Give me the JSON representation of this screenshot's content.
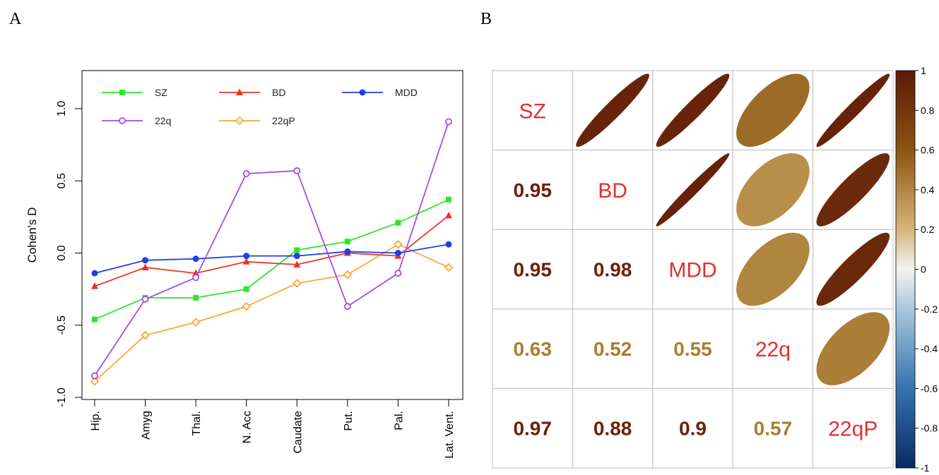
{
  "panels": {
    "a": "A",
    "b": "B"
  },
  "chart_data": [
    {
      "type": "line",
      "ylabel": "Cohen's D",
      "xlabel": "",
      "categories": [
        "Hip.",
        "Amyg",
        "Thal.",
        "N. Acc",
        "Caudate",
        "Put.",
        "Pal.",
        "Lat. Vent."
      ],
      "ylim": [
        -1.0,
        1.25
      ],
      "yticks": [
        -1.0,
        -0.5,
        0.0,
        0.5,
        1.0
      ],
      "ytick_labels": [
        "-1.0",
        "-0.5",
        "0.0",
        "0.5",
        "1.0"
      ],
      "grid": false,
      "legend_position": "top",
      "series": [
        {
          "name": "SZ",
          "color": "#2ee62e",
          "marker": "square",
          "values": [
            -0.46,
            -0.31,
            -0.31,
            -0.25,
            0.02,
            0.08,
            0.21,
            0.37
          ]
        },
        {
          "name": "BD",
          "color": "#ee3324",
          "marker": "triangle",
          "values": [
            -0.23,
            -0.1,
            -0.14,
            -0.06,
            -0.08,
            0.0,
            -0.02,
            0.26
          ]
        },
        {
          "name": "MDD",
          "color": "#1f3fe8",
          "marker": "circle",
          "values": [
            -0.14,
            -0.05,
            -0.04,
            -0.02,
            -0.02,
            0.01,
            0.0,
            0.06
          ]
        },
        {
          "name": "22q",
          "color": "#a64ae8",
          "marker": "open-circle",
          "values": [
            -0.85,
            -0.32,
            -0.17,
            0.55,
            0.57,
            -0.37,
            -0.14,
            0.91
          ]
        },
        {
          "name": "22qP",
          "color": "#ffa733",
          "marker": "open-diamond",
          "values": [
            -0.89,
            -0.57,
            -0.48,
            -0.37,
            -0.21,
            -0.15,
            0.06,
            -0.1
          ]
        }
      ]
    },
    {
      "type": "heatmap",
      "labels": [
        "SZ",
        "BD",
        "MDD",
        "22q",
        "22qP"
      ],
      "matrix": [
        [
          1.0,
          0.95,
          0.95,
          0.63,
          0.97
        ],
        [
          0.95,
          1.0,
          0.98,
          0.52,
          0.88
        ],
        [
          0.95,
          0.98,
          1.0,
          0.55,
          0.9
        ],
        [
          0.63,
          0.52,
          0.55,
          1.0,
          0.57
        ],
        [
          0.97,
          0.88,
          0.9,
          0.57,
          1.0
        ]
      ],
      "value_labels": [
        [
          "",
          "",
          "",
          "",
          ""
        ],
        [
          "0.95",
          "",
          "",
          "",
          ""
        ],
        [
          "0.95",
          "0.98",
          "",
          "",
          ""
        ],
        [
          "0.63",
          "0.52",
          "0.55",
          "",
          ""
        ],
        [
          "0.97",
          "0.88",
          "0.9",
          "0.57",
          ""
        ]
      ],
      "upper": "ellipse",
      "lower": "number",
      "colorbar": {
        "range": [
          -1,
          1
        ],
        "ticks": [
          "1",
          "0.8",
          "0.6",
          "0.4",
          "0.2",
          "0",
          "-0.2",
          "-0.4",
          "-0.6",
          "-0.8",
          "-1"
        ]
      },
      "colors": {
        "label": "#e03030",
        "grid": "#bdbdbd",
        "strong": "#6b210b",
        "moderate": "#ab7d2c"
      }
    }
  ]
}
